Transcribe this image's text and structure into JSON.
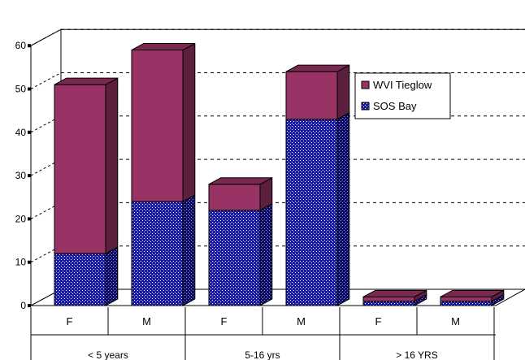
{
  "chart_data": {
    "type": "bar",
    "stacked": true,
    "three_d": true,
    "groups": [
      {
        "label": "< 5 years",
        "categories": [
          "F",
          "M"
        ]
      },
      {
        "label": "5-16 yrs",
        "categories": [
          "F",
          "M"
        ]
      },
      {
        "label": "> 16 YRS",
        "categories": [
          "F",
          "M"
        ]
      }
    ],
    "categories": [
      "F",
      "M",
      "F",
      "M",
      "F",
      "M"
    ],
    "series": [
      {
        "name": "SOS Bay",
        "values": [
          12,
          24,
          22,
          43,
          1,
          1
        ],
        "color": "#1a1aa8",
        "pattern": "dotted"
      },
      {
        "name": "WVI Tieglow",
        "values": [
          39,
          35,
          6,
          11,
          1,
          1
        ],
        "color": "#993366"
      }
    ],
    "yticks": [
      0,
      10,
      20,
      30,
      40,
      50,
      60
    ],
    "ylim": [
      0,
      60
    ],
    "grid": "dashed",
    "legend": "right",
    "legend_order": [
      "WVI Tieglow",
      "SOS Bay"
    ]
  }
}
